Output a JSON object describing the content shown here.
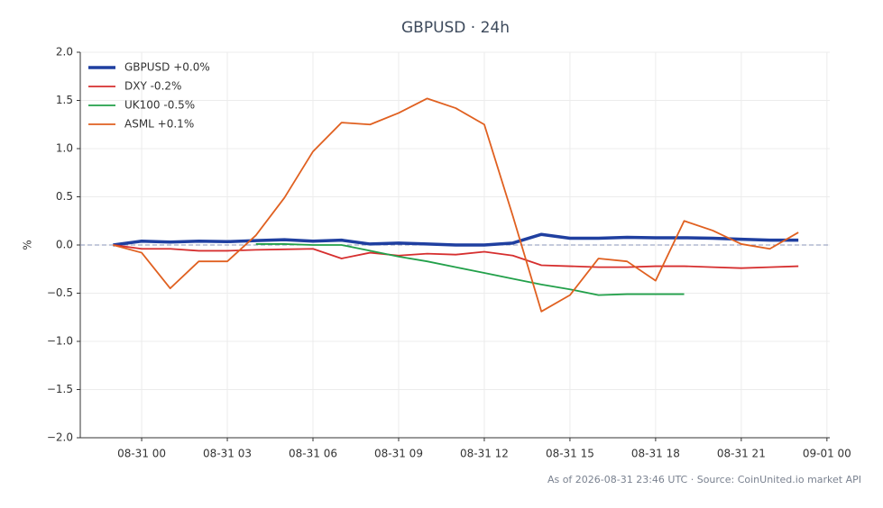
{
  "chart_data": {
    "type": "line",
    "title": "GBPUSD · 24h",
    "y_label": "%",
    "footer": "As of 2026-08-31 23:46 UTC · Source: CoinUnited.io market API",
    "x": [
      -1,
      0,
      1,
      2,
      3,
      4,
      5,
      6,
      7,
      8,
      9,
      10,
      11,
      12,
      13,
      14,
      15,
      16,
      17,
      18,
      19,
      20,
      21,
      22,
      23
    ],
    "xlim": [
      -2.15,
      24.1
    ],
    "xticks": [
      {
        "value": 0,
        "label": "08-31 00"
      },
      {
        "value": 3,
        "label": "08-31 03"
      },
      {
        "value": 6,
        "label": "08-31 06"
      },
      {
        "value": 9,
        "label": "08-31 09"
      },
      {
        "value": 12,
        "label": "08-31 12"
      },
      {
        "value": 15,
        "label": "08-31 15"
      },
      {
        "value": 18,
        "label": "08-31 18"
      },
      {
        "value": 21,
        "label": "08-31 21"
      },
      {
        "value": 24,
        "label": "09-01 00"
      }
    ],
    "ylim": [
      -2.0,
      2.0
    ],
    "yticks": [
      {
        "value": -2,
        "label": "−2.0"
      },
      {
        "value": -1.5,
        "label": "−1.5"
      },
      {
        "value": -1,
        "label": "−1.0"
      },
      {
        "value": -0.5,
        "label": "−0.5"
      },
      {
        "value": 0,
        "label": "0.0"
      },
      {
        "value": 0.5,
        "label": "0.5"
      },
      {
        "value": 1,
        "label": "1.0"
      },
      {
        "value": 1.5,
        "label": "1.5"
      },
      {
        "value": 2,
        "label": "2.0"
      }
    ],
    "grid": true,
    "zero_line": true,
    "legend": "upper-left",
    "series": [
      {
        "name": "GBPUSD +0.0%",
        "color": "#1f3fa0",
        "width": 3.5,
        "values": [
          0,
          0.04,
          0.03,
          0.04,
          0.035,
          0.045,
          0.055,
          0.04,
          0.05,
          0.01,
          0.02,
          0.01,
          0,
          0,
          0.02,
          0.11,
          0.07,
          0.07,
          0.08,
          0.075,
          0.075,
          0.07,
          0.06,
          0.05,
          0.05
        ]
      },
      {
        "name": "DXY -0.2%",
        "color": "#d62f2f",
        "width": 1.8,
        "values": [
          0,
          -0.04,
          -0.04,
          -0.06,
          -0.06,
          -0.05,
          -0.045,
          -0.04,
          -0.14,
          -0.08,
          -0.11,
          -0.09,
          -0.1,
          -0.07,
          -0.11,
          -0.21,
          -0.22,
          -0.23,
          -0.23,
          -0.22,
          -0.22,
          -0.23,
          -0.24,
          -0.23,
          -0.22
        ]
      },
      {
        "name": "UK100 -0.5%",
        "color": "#22a04a",
        "width": 1.8,
        "values": [
          null,
          null,
          null,
          null,
          null,
          0.01,
          0.01,
          0,
          0,
          -0.06,
          -0.12,
          -0.17,
          -0.23,
          -0.29,
          -0.35,
          -0.41,
          -0.46,
          -0.52,
          -0.51,
          -0.51,
          -0.51,
          null,
          null,
          null,
          null
        ]
      },
      {
        "name": "ASML +0.1%",
        "color": "#e06020",
        "width": 1.8,
        "values": [
          0,
          -0.08,
          -0.45,
          -0.17,
          -0.17,
          0.1,
          0.49,
          0.97,
          1.27,
          1.25,
          1.37,
          1.52,
          1.42,
          1.25,
          0.3,
          -0.69,
          -0.52,
          -0.14,
          -0.17,
          -0.37,
          0.25,
          0.15,
          0.01,
          -0.04,
          0.13
        ]
      }
    ]
  }
}
